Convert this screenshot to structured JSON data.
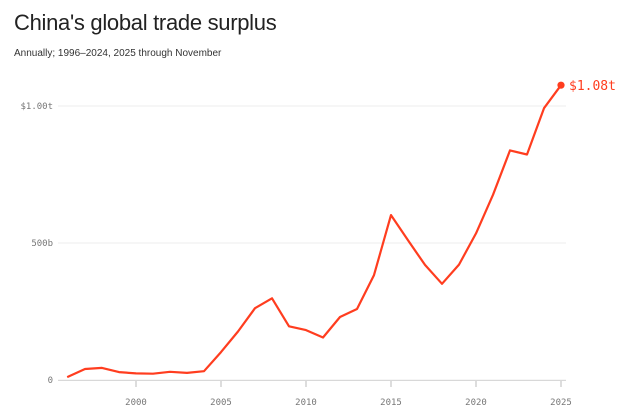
{
  "title": "China's global trade surplus",
  "subtitle": "Annually; 1996–2024, 2025 through November",
  "colors": {
    "line": "#ff3d1f",
    "grid": "#ececec",
    "axis_text": "#777777",
    "title": "#222222"
  },
  "chart_data": {
    "type": "line",
    "title": "China's global trade surplus",
    "subtitle": "Annually; 1996–2024, 2025 through November",
    "xlabel": "",
    "ylabel": "",
    "xlim": [
      1996,
      2025
    ],
    "ylim": [
      0,
      1080
    ],
    "grid": true,
    "y_unit": "billions USD",
    "y_ticks": [
      {
        "value": 0,
        "label": "0"
      },
      {
        "value": 500,
        "label": "500b"
      },
      {
        "value": 1000,
        "label": "$1.00t"
      }
    ],
    "x_ticks": [
      {
        "value": 2000,
        "label": "2000"
      },
      {
        "value": 2005,
        "label": "2005"
      },
      {
        "value": 2010,
        "label": "2010"
      },
      {
        "value": 2015,
        "label": "2015"
      },
      {
        "value": 2020,
        "label": "2020"
      },
      {
        "value": 2025,
        "label": "2025"
      }
    ],
    "series": [
      {
        "x": [
          1996,
          1997,
          1998,
          1999,
          2000,
          2001,
          2002,
          2003,
          2004,
          2005,
          2006,
          2007,
          2008,
          2009,
          2010,
          2011,
          2012,
          2013,
          2014,
          2015,
          2016,
          2017,
          2018,
          2019,
          2020,
          2021,
          2022,
          2023,
          2024,
          2025
        ],
        "values": [
          12,
          40,
          44,
          29,
          24,
          23,
          30,
          26,
          32,
          102,
          177,
          262,
          298,
          196,
          182,
          155,
          230,
          259,
          383,
          602,
          510,
          420,
          351,
          421,
          535,
          676,
          838,
          823,
          992,
          1076
        ]
      }
    ],
    "end_label": "$1.08t"
  }
}
